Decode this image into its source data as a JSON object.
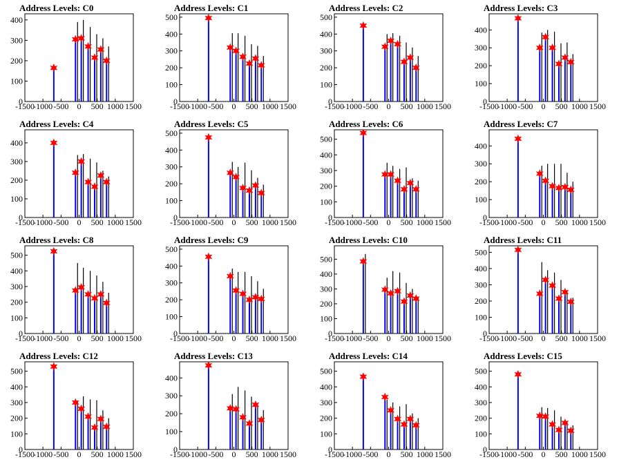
{
  "chart_data": {
    "type": "bar",
    "xticks": [
      -1500,
      -1000,
      -500,
      0,
      500,
      1000,
      1500
    ],
    "xlim": [
      -1500,
      1500
    ],
    "bar_color": "#0000ff",
    "black_color": "#000000",
    "marker_color": "#ff0000",
    "panels": [
      {
        "title": "Address Levels: C0",
        "ylim": [
          0,
          430
        ],
        "yticks": [
          0,
          100,
          200,
          300,
          400
        ],
        "star_x": [
          -700,
          -100,
          60,
          250,
          430,
          600,
          760
        ],
        "star_y": [
          165,
          305,
          310,
          270,
          215,
          255,
          200
        ],
        "black_x": [
          -100,
          60,
          250,
          430,
          600,
          760
        ],
        "black_y": [
          390,
          400,
          365,
          330,
          310,
          270
        ],
        "blue_x": [
          -700,
          -100,
          60,
          250,
          430,
          600,
          760
        ],
        "blue_y": [
          165,
          300,
          310,
          265,
          215,
          255,
          200
        ]
      },
      {
        "title": "Address Levels: C1",
        "ylim": [
          0,
          520
        ],
        "yticks": [
          0,
          100,
          200,
          300,
          400,
          500
        ],
        "star_x": [
          -700,
          -100,
          60,
          250,
          430,
          600,
          760
        ],
        "star_y": [
          495,
          320,
          300,
          265,
          225,
          255,
          215
        ],
        "black_x": [
          -100,
          60,
          250,
          430,
          600,
          760
        ],
        "black_y": [
          405,
          405,
          390,
          340,
          330,
          270
        ],
        "blue_x": [
          -700,
          -100,
          60,
          250,
          430,
          600,
          760
        ],
        "blue_y": [
          495,
          320,
          300,
          265,
          225,
          255,
          215
        ]
      },
      {
        "title": "Address Levels: C2",
        "ylim": [
          0,
          520
        ],
        "yticks": [
          0,
          100,
          200,
          300,
          400,
          500
        ],
        "star_x": [
          -700,
          -100,
          60,
          250,
          430,
          600,
          760
        ],
        "star_y": [
          450,
          325,
          360,
          340,
          235,
          260,
          200
        ],
        "black_x": [
          -100,
          60,
          250,
          430,
          600,
          760
        ],
        "black_y": [
          400,
          405,
          390,
          350,
          320,
          270
        ],
        "blue_x": [
          -700,
          -100,
          60,
          250,
          430,
          600,
          760
        ],
        "blue_y": [
          450,
          325,
          360,
          340,
          235,
          260,
          200
        ]
      },
      {
        "title": "Address Levels: C3",
        "ylim": [
          0,
          490
        ],
        "yticks": [
          0,
          100,
          200,
          300,
          400
        ],
        "star_x": [
          -700,
          -100,
          60,
          250,
          430,
          600,
          760
        ],
        "star_y": [
          465,
          300,
          360,
          300,
          210,
          245,
          220
        ],
        "black_x": [
          -100,
          60,
          250,
          430,
          600,
          760
        ],
        "black_y": [
          385,
          400,
          390,
          325,
          330,
          265
        ],
        "blue_x": [
          -700,
          -100,
          60,
          250,
          430,
          600,
          760
        ],
        "blue_y": [
          465,
          300,
          360,
          300,
          210,
          245,
          220
        ]
      },
      {
        "title": "Address Levels: C4",
        "ylim": [
          0,
          470
        ],
        "yticks": [
          0,
          100,
          200,
          300,
          400
        ],
        "star_x": [
          -700,
          -100,
          60,
          250,
          430,
          600,
          760
        ],
        "star_y": [
          400,
          240,
          300,
          190,
          165,
          225,
          190
        ],
        "black_x": [
          -100,
          60,
          250,
          430,
          600,
          760
        ],
        "black_y": [
          335,
          340,
          315,
          295,
          250,
          220
        ],
        "blue_x": [
          -700,
          -100,
          60,
          250,
          430,
          600,
          760
        ],
        "blue_y": [
          400,
          240,
          300,
          190,
          165,
          225,
          190
        ]
      },
      {
        "title": "Address Levels: C5",
        "ylim": [
          0,
          520
        ],
        "yticks": [
          0,
          100,
          200,
          300,
          400,
          500
        ],
        "star_x": [
          -700,
          -100,
          60,
          250,
          430,
          600,
          760
        ],
        "star_y": [
          475,
          265,
          240,
          175,
          160,
          190,
          145
        ],
        "black_x": [
          -100,
          60,
          250,
          430,
          600,
          760
        ],
        "black_y": [
          330,
          300,
          325,
          280,
          235,
          195
        ],
        "blue_x": [
          -700,
          -100,
          60,
          250,
          430,
          600,
          760
        ],
        "blue_y": [
          475,
          265,
          240,
          175,
          160,
          190,
          145
        ]
      },
      {
        "title": "Address Levels: C6",
        "ylim": [
          0,
          560
        ],
        "yticks": [
          0,
          100,
          200,
          300,
          400,
          500
        ],
        "star_x": [
          -700,
          -100,
          60,
          250,
          430,
          600,
          760
        ],
        "star_y": [
          540,
          275,
          275,
          235,
          180,
          220,
          180
        ],
        "black_x": [
          -100,
          60,
          250,
          430,
          600,
          760
        ],
        "black_y": [
          350,
          330,
          310,
          320,
          250,
          235
        ],
        "blue_x": [
          -700,
          -100,
          60,
          250,
          430,
          600,
          760
        ],
        "blue_y": [
          540,
          275,
          275,
          235,
          180,
          220,
          180
        ]
      },
      {
        "title": "Address Levels: C7",
        "ylim": [
          0,
          490
        ],
        "yticks": [
          0,
          100,
          200,
          300,
          400
        ],
        "star_x": [
          -700,
          -100,
          60,
          250,
          430,
          600,
          760
        ],
        "star_y": [
          440,
          245,
          205,
          175,
          165,
          170,
          155
        ],
        "black_x": [
          -100,
          60,
          250,
          430,
          600,
          760
        ],
        "black_y": [
          290,
          300,
          300,
          300,
          250,
          200
        ],
        "blue_x": [
          -700,
          -100,
          60,
          250,
          430,
          600,
          760
        ],
        "blue_y": [
          440,
          245,
          205,
          175,
          165,
          170,
          155
        ]
      },
      {
        "title": "Address Levels: C8",
        "ylim": [
          0,
          560
        ],
        "yticks": [
          0,
          100,
          200,
          300,
          400,
          500
        ],
        "star_x": [
          -700,
          -100,
          60,
          250,
          430,
          600,
          760
        ],
        "star_y": [
          525,
          275,
          295,
          250,
          225,
          250,
          195
        ],
        "black_x": [
          -100,
          60,
          250,
          430,
          600,
          760
        ],
        "black_y": [
          450,
          420,
          400,
          370,
          330,
          260
        ],
        "blue_x": [
          -700,
          -100,
          60,
          250,
          430,
          600,
          760
        ],
        "blue_y": [
          525,
          275,
          295,
          250,
          225,
          250,
          195
        ]
      },
      {
        "title": "Address Levels: C9",
        "ylim": [
          0,
          520
        ],
        "yticks": [
          0,
          100,
          200,
          300,
          400,
          500
        ],
        "star_x": [
          -700,
          -100,
          60,
          250,
          430,
          600,
          760
        ],
        "star_y": [
          455,
          340,
          255,
          235,
          200,
          215,
          205
        ],
        "black_x": [
          -100,
          60,
          250,
          430,
          600,
          760
        ],
        "black_y": [
          385,
          365,
          365,
          340,
          310,
          265
        ],
        "blue_x": [
          -700,
          -100,
          60,
          250,
          430,
          600,
          760
        ],
        "blue_y": [
          455,
          340,
          255,
          235,
          200,
          215,
          205
        ]
      },
      {
        "title": "Address Levels: C10",
        "ylim": [
          0,
          590
        ],
        "yticks": [
          0,
          100,
          200,
          300,
          400,
          500
        ],
        "star_x": [
          -700,
          -100,
          60,
          250,
          430,
          600,
          760
        ],
        "star_y": [
          485,
          295,
          270,
          285,
          215,
          255,
          235
        ],
        "black_x": [
          -700,
          -100,
          60,
          250,
          430,
          600,
          760
        ],
        "black_y": [
          535,
          375,
          420,
          410,
          340,
          300,
          245
        ],
        "blue_x": [
          -700,
          -100,
          60,
          250,
          430,
          600,
          760
        ],
        "blue_y": [
          485,
          295,
          270,
          285,
          215,
          255,
          235
        ]
      },
      {
        "title": "Address Levels: C11",
        "ylim": [
          0,
          540
        ],
        "yticks": [
          0,
          100,
          200,
          300,
          400,
          500
        ],
        "star_x": [
          -700,
          -100,
          60,
          250,
          430,
          600,
          760
        ],
        "star_y": [
          515,
          245,
          330,
          295,
          215,
          255,
          195
        ],
        "black_x": [
          -100,
          60,
          250,
          430,
          600,
          760
        ],
        "black_y": [
          440,
          390,
          375,
          330,
          265,
          220
        ],
        "blue_x": [
          -700,
          -100,
          60,
          250,
          430,
          600,
          760
        ],
        "blue_y": [
          515,
          245,
          330,
          295,
          215,
          255,
          195
        ]
      },
      {
        "title": "Address Levels: C12",
        "ylim": [
          0,
          560
        ],
        "yticks": [
          0,
          100,
          200,
          300,
          400,
          500
        ],
        "star_x": [
          -700,
          -100,
          60,
          250,
          430,
          600,
          760
        ],
        "star_y": [
          530,
          300,
          260,
          210,
          140,
          195,
          145
        ],
        "black_x": [
          -100,
          60,
          250,
          430,
          600,
          760
        ],
        "black_y": [
          310,
          340,
          320,
          315,
          250,
          200
        ],
        "blue_x": [
          -700,
          -100,
          60,
          250,
          430,
          600,
          760
        ],
        "blue_y": [
          530,
          300,
          260,
          210,
          140,
          195,
          145
        ]
      },
      {
        "title": "Address Levels: C13",
        "ylim": [
          0,
          490
        ],
        "yticks": [
          0,
          100,
          200,
          300,
          400
        ],
        "star_x": [
          -700,
          -100,
          60,
          250,
          430,
          600,
          760
        ],
        "star_y": [
          470,
          230,
          225,
          180,
          145,
          250,
          165
        ],
        "black_x": [
          -100,
          60,
          250,
          430,
          600,
          760
        ],
        "black_y": [
          310,
          350,
          330,
          295,
          250,
          220
        ],
        "blue_x": [
          -700,
          -100,
          60,
          250,
          430,
          600,
          760
        ],
        "blue_y": [
          470,
          230,
          225,
          180,
          145,
          250,
          165
        ]
      },
      {
        "title": "Address Levels: C14",
        "ylim": [
          0,
          560
        ],
        "yticks": [
          0,
          100,
          200,
          300,
          400,
          500
        ],
        "star_x": [
          -700,
          -100,
          60,
          250,
          430,
          600,
          760
        ],
        "star_y": [
          465,
          335,
          250,
          195,
          160,
          195,
          155
        ],
        "black_x": [
          -100,
          60,
          250,
          430,
          600,
          760
        ],
        "black_y": [
          320,
          300,
          275,
          290,
          230,
          200
        ],
        "blue_x": [
          -700,
          -100,
          60,
          250,
          430,
          600,
          760
        ],
        "blue_y": [
          465,
          335,
          250,
          195,
          160,
          195,
          155
        ]
      },
      {
        "title": "Address Levels: C15",
        "ylim": [
          0,
          560
        ],
        "yticks": [
          0,
          100,
          200,
          300,
          400,
          500
        ],
        "star_x": [
          -700,
          -100,
          60,
          250,
          430,
          600,
          760
        ],
        "star_y": [
          480,
          215,
          210,
          160,
          125,
          170,
          120
        ],
        "black_x": [
          -100,
          60,
          250,
          430,
          600,
          760
        ],
        "black_y": [
          270,
          265,
          250,
          210,
          180,
          155
        ],
        "blue_x": [
          -700,
          -100,
          60,
          250,
          430,
          600,
          760
        ],
        "blue_y": [
          480,
          215,
          210,
          160,
          125,
          170,
          120
        ]
      }
    ]
  }
}
